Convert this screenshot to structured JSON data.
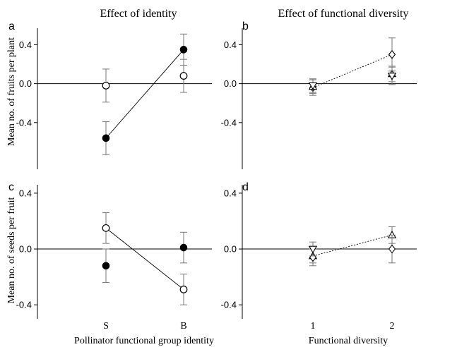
{
  "colors": {
    "ink": "#000000",
    "error_bar": "#777777",
    "background": "#ffffff"
  },
  "column_titles": [
    "Effect of identity",
    "Effect of functional diversity"
  ],
  "ylabels": [
    "Mean no. of fruits per plant",
    "Mean no. of seeds per fruit"
  ],
  "xlabels": [
    "Pollinator functional group identity",
    "Functional diversity"
  ],
  "chart_data": [
    {
      "panel": "a",
      "type": "scatter",
      "grid": false,
      "ylim": [
        -0.88,
        0.57
      ],
      "yticks": [
        "0.4",
        "0.0",
        "-0.4"
      ],
      "ytick_values": [
        0.4,
        0.0,
        -0.4
      ],
      "categories": [
        "S",
        "B"
      ],
      "show_xticks": false,
      "series": [
        {
          "marker": "circle-filled",
          "line": "solid",
          "values": [
            -0.56,
            0.35
          ],
          "errors": [
            0.17,
            0.16
          ]
        },
        {
          "marker": "circle-open",
          "line": "none",
          "values": [
            -0.02,
            0.08
          ],
          "errors": [
            0.17,
            0.17
          ]
        }
      ]
    },
    {
      "panel": "b",
      "type": "scatter",
      "grid": false,
      "ylim": [
        -0.88,
        0.57
      ],
      "yticks": [
        "0.4",
        "0.0",
        "-0.4"
      ],
      "ytick_values": [
        0.4,
        0.0,
        -0.4
      ],
      "categories": [
        "1",
        "2"
      ],
      "show_xticks": false,
      "series": [
        {
          "marker": "diamond-open",
          "line": "dotted",
          "values": [
            -0.04,
            0.3
          ],
          "errors": [
            0.08,
            0.17
          ]
        },
        {
          "marker": "triangle-open",
          "line": "none",
          "values": [
            -0.03,
            0.1
          ],
          "errors": [
            0.07,
            0.08
          ]
        },
        {
          "marker": "triangle-down-open",
          "line": "none",
          "values": [
            -0.02,
            0.08
          ],
          "errors": [
            0.07,
            0.09
          ]
        }
      ]
    },
    {
      "panel": "c",
      "type": "scatter",
      "grid": false,
      "ylim": [
        -0.5,
        0.46
      ],
      "yticks": [
        "0.4",
        "0.0",
        "-0.4"
      ],
      "ytick_values": [
        0.4,
        0.0,
        -0.4
      ],
      "categories": [
        "S",
        "B"
      ],
      "show_xticks": true,
      "series": [
        {
          "marker": "circle-open",
          "line": "solid",
          "values": [
            0.15,
            -0.29
          ],
          "errors": [
            0.11,
            0.11
          ]
        },
        {
          "marker": "circle-filled",
          "line": "none",
          "values": [
            -0.12,
            0.01
          ],
          "errors": [
            0.12,
            0.11
          ]
        }
      ]
    },
    {
      "panel": "d",
      "type": "scatter",
      "grid": false,
      "ylim": [
        -0.5,
        0.46
      ],
      "yticks": [
        "0.4",
        "0.0",
        "-0.4"
      ],
      "ytick_values": [
        0.4,
        0.0,
        -0.4
      ],
      "categories": [
        "1",
        "2"
      ],
      "show_xticks": true,
      "series": [
        {
          "marker": "triangle-open",
          "line": "dotted",
          "values": [
            -0.05,
            0.1
          ],
          "errors": [
            0.05,
            0.06
          ]
        },
        {
          "marker": "diamond-open",
          "line": "none",
          "values": [
            -0.06,
            0.0
          ],
          "errors": [
            0.06,
            0.1
          ]
        },
        {
          "marker": "triangle-down-open",
          "line": "none",
          "values": [
            0.0,
            null
          ],
          "errors": [
            0.05,
            null
          ]
        }
      ]
    }
  ]
}
